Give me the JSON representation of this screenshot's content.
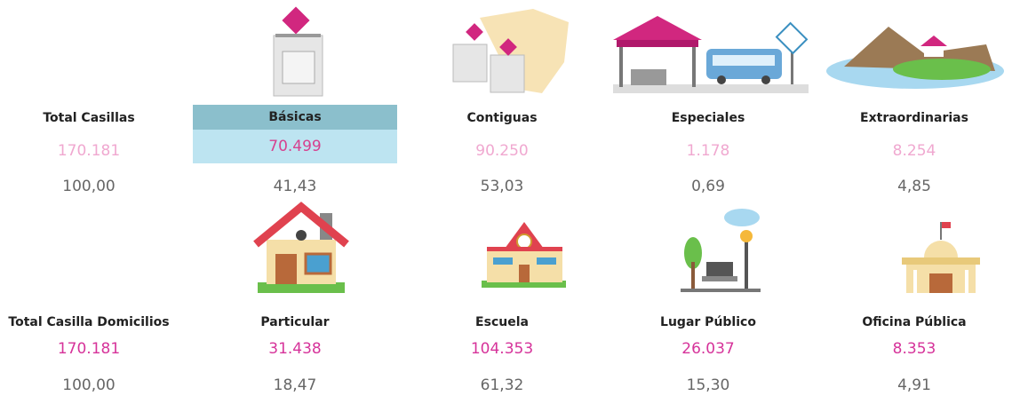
{
  "rows": [
    {
      "groups": [
        {
          "label": "Total Casillas",
          "value": "170.181",
          "percent": "100,00"
        },
        {
          "label": "Básicas",
          "value": "70.499",
          "percent": "41,43"
        },
        {
          "label": "Contiguas",
          "value": "90.250",
          "percent": "53,03"
        },
        {
          "label": "Especiales",
          "value": "1.178",
          "percent": "0,69"
        },
        {
          "label": "Extraordinarias",
          "value": "8.254",
          "percent": "4,85"
        }
      ]
    },
    {
      "groups": [
        {
          "label": "Total Casilla Domicilios",
          "value": "170.181",
          "percent": "100,00"
        },
        {
          "label": "Particular",
          "value": "31.438",
          "percent": "18,47"
        },
        {
          "label": "Escuela",
          "value": "104.353",
          "percent": "61,32"
        },
        {
          "label": "Lugar Público",
          "value": "26.037",
          "percent": "15,30"
        },
        {
          "label": "Oficina Pública",
          "value": "8.353",
          "percent": "4,91"
        }
      ]
    }
  ]
}
